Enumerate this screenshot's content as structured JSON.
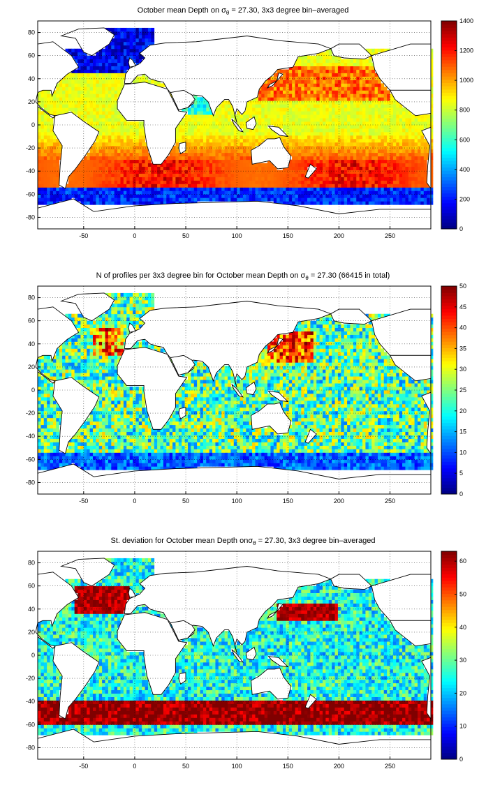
{
  "panels": [
    {
      "id": "mean",
      "title_prefix": "October mean Depth on σ",
      "title_sub": "θ",
      "title_suffix": " = 27.30, 3x3 degree bin–averaged",
      "colorbar": {
        "min": 0,
        "max": 1400,
        "ticks": [
          0,
          200,
          400,
          600,
          800,
          1000,
          1200,
          1400
        ]
      }
    },
    {
      "id": "count",
      "title_prefix": "N of profiles per 3x3 degree bin for October mean Depth on σ",
      "title_sub": "θ",
      "title_suffix": " = 27.30 (66415 in total)",
      "colorbar": {
        "min": 0,
        "max": 50,
        "ticks": [
          0,
          5,
          10,
          15,
          20,
          25,
          30,
          35,
          40,
          45,
          50
        ]
      }
    },
    {
      "id": "std",
      "title_prefix": "St. deviation for October mean Depth onσ",
      "title_sub": "θ",
      "title_suffix": " = 27.30, 3x3 degree bin–averaged",
      "colorbar": {
        "min": 0,
        "max": 63,
        "ticks": [
          0,
          10,
          20,
          30,
          40,
          50,
          60
        ]
      }
    }
  ],
  "map_axes": {
    "lon_range": [
      -95,
      290
    ],
    "lat_range": [
      -90,
      90
    ],
    "lon_ticks": [
      -50,
      0,
      50,
      100,
      150,
      200,
      250
    ],
    "lat_ticks": [
      -80,
      -60,
      -40,
      -20,
      0,
      20,
      40,
      60,
      80
    ],
    "lon_grid": [
      -50,
      0,
      50,
      100,
      150,
      200,
      250
    ],
    "lat_grid": [
      -80,
      -60,
      -40,
      -20,
      0,
      20,
      40,
      60,
      80
    ]
  },
  "colormap": "jet"
}
